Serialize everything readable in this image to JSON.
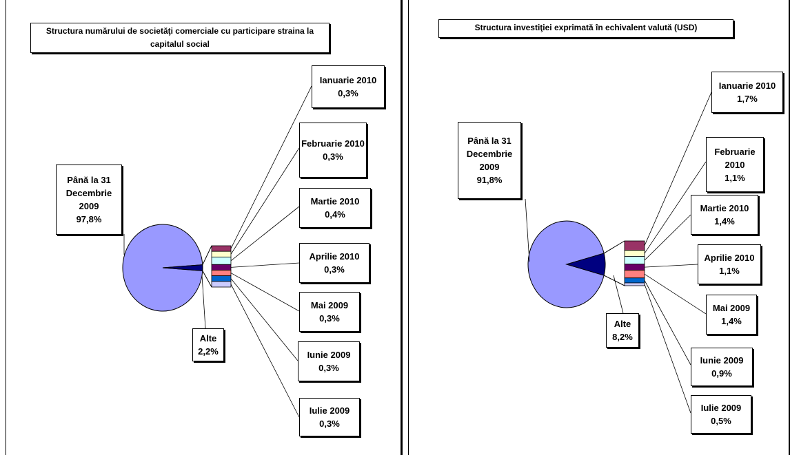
{
  "chart_data": [
    {
      "type": "pie",
      "title": "Structura numărului de societăţi comerciale cu participare straina la capitalul social",
      "main_slices": [
        {
          "label": "Până la 31 Decembrie 2009",
          "value_text": "97,8%",
          "value": 97.8,
          "color": "#9999FF"
        },
        {
          "label": "Alte",
          "value_text": "2,2%",
          "value": 2.2,
          "color": "#000080"
        }
      ],
      "breakdown": [
        {
          "label": "Ianuarie 2010",
          "value_text": "0,3%",
          "value": 0.3,
          "color": "#993366"
        },
        {
          "label": "Februarie 2010",
          "value_text": "0,3%",
          "value": 0.3,
          "color": "#FFFFCC"
        },
        {
          "label": "Martie 2010",
          "value_text": "0,4%",
          "value": 0.4,
          "color": "#CCFFFF"
        },
        {
          "label": "Aprilie 2010",
          "value_text": "0,3%",
          "value": 0.3,
          "color": "#660066"
        },
        {
          "label": "Mai 2009",
          "value_text": "0,3%",
          "value": 0.3,
          "color": "#FF8080"
        },
        {
          "label": "Iunie 2009",
          "value_text": "0,3%",
          "value": 0.3,
          "color": "#0066CC"
        },
        {
          "label": "Iulie 2009",
          "value_text": "0,3%",
          "value": 0.3,
          "color": "#CCCCFF"
        }
      ]
    },
    {
      "type": "pie",
      "title": "Structura investiţiei exprimată în echivalent valută (USD)",
      "main_slices": [
        {
          "label": "Până la 31 Decembrie 2009",
          "value_text": "91,8%",
          "value": 91.8,
          "color": "#9999FF"
        },
        {
          "label": "Alte",
          "value_text": "8,2%",
          "value": 8.2,
          "color": "#000080"
        }
      ],
      "breakdown": [
        {
          "label": "Ianuarie 2010",
          "value_text": "1,7%",
          "value": 1.7,
          "color": "#993366"
        },
        {
          "label": "Februarie 2010",
          "value_text": "1,1%",
          "value": 1.1,
          "color": "#FFFFCC"
        },
        {
          "label": "Martie 2010",
          "value_text": "1,4%",
          "value": 1.4,
          "color": "#CCFFFF"
        },
        {
          "label": "Aprilie 2010",
          "value_text": "1,1%",
          "value": 1.1,
          "color": "#660066"
        },
        {
          "label": "Mai 2009",
          "value_text": "1,4%",
          "value": 1.4,
          "color": "#FF8080"
        },
        {
          "label": "Iunie 2009",
          "value_text": "0,9%",
          "value": 0.9,
          "color": "#0066CC"
        },
        {
          "label": "Iulie 2009",
          "value_text": "0,5%",
          "value": 0.5,
          "color": "#CCCCFF"
        }
      ]
    }
  ]
}
